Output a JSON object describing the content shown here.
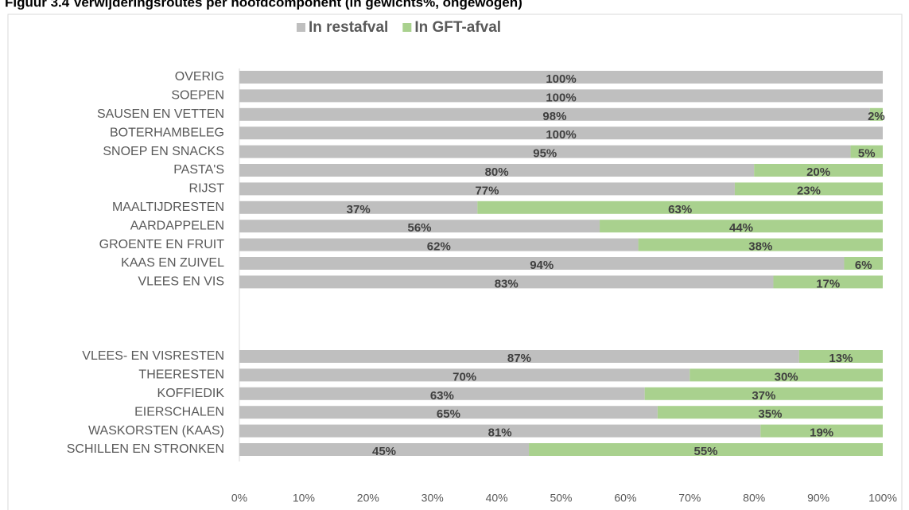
{
  "chart_data": {
    "type": "stacked_barh",
    "title": "Figuur 3.4 Verwijderingsroutes per hoofdcomponent (in gewichts%, ongewogen)",
    "categories": [
      "OVERIG",
      "SOEPEN",
      "SAUSEN EN VETTEN",
      "BOTERHAMBELEG",
      "SNOEP EN SNACKS",
      "PASTA'S",
      "RIJST",
      "MAALTIJDRESTEN",
      "AARDAPPELEN",
      "GROENTE EN FRUIT",
      "KAAS EN ZUIVEL",
      "VLEES EN VIS",
      null,
      null,
      null,
      "VLEES- EN VISRESTEN",
      "THEERESTEN",
      "KOFFIEDIK",
      "EIERSCHALEN",
      "WASKORSTEN (KAAS)",
      "SCHILLEN EN STRONKEN"
    ],
    "series": [
      {
        "name": "In restafval",
        "color": "#bfbfbf",
        "values": [
          100,
          100,
          98,
          100,
          95,
          80,
          77,
          37,
          56,
          62,
          94,
          83,
          null,
          null,
          null,
          87,
          70,
          63,
          65,
          81,
          45
        ],
        "value_labels": [
          "100%",
          "100%",
          "98%",
          "100%",
          "95%",
          "80%",
          "77%",
          "37%",
          "56%",
          "62%",
          "94%",
          "83%",
          null,
          null,
          null,
          "87%",
          "70%",
          "63%",
          "65%",
          "81%",
          "45%"
        ]
      },
      {
        "name": "In GFT-afval",
        "color": "#a9d18e",
        "values": [
          null,
          null,
          2,
          null,
          5,
          20,
          23,
          63,
          44,
          38,
          6,
          17,
          null,
          null,
          null,
          13,
          30,
          37,
          35,
          19,
          55
        ],
        "value_labels": [
          null,
          null,
          "2%",
          null,
          "5%",
          "20%",
          "23%",
          "63%",
          "44%",
          "38%",
          "6%",
          "17%",
          null,
          null,
          null,
          "13%",
          "30%",
          "37%",
          "35%",
          "19%",
          "55%"
        ]
      }
    ],
    "xlim": [
      0,
      100
    ],
    "xticks": [
      {
        "value": 0,
        "label": "0%"
      },
      {
        "value": 10,
        "label": "10%"
      },
      {
        "value": 20,
        "label": "20%"
      },
      {
        "value": 30,
        "label": "30%"
      },
      {
        "value": 40,
        "label": "40%"
      },
      {
        "value": 50,
        "label": "50%"
      },
      {
        "value": 60,
        "label": "60%"
      },
      {
        "value": 70,
        "label": "70%"
      },
      {
        "value": 80,
        "label": "80%"
      },
      {
        "value": 90,
        "label": "90%"
      },
      {
        "value": 100,
        "label": "100%"
      }
    ],
    "legend": "top"
  }
}
